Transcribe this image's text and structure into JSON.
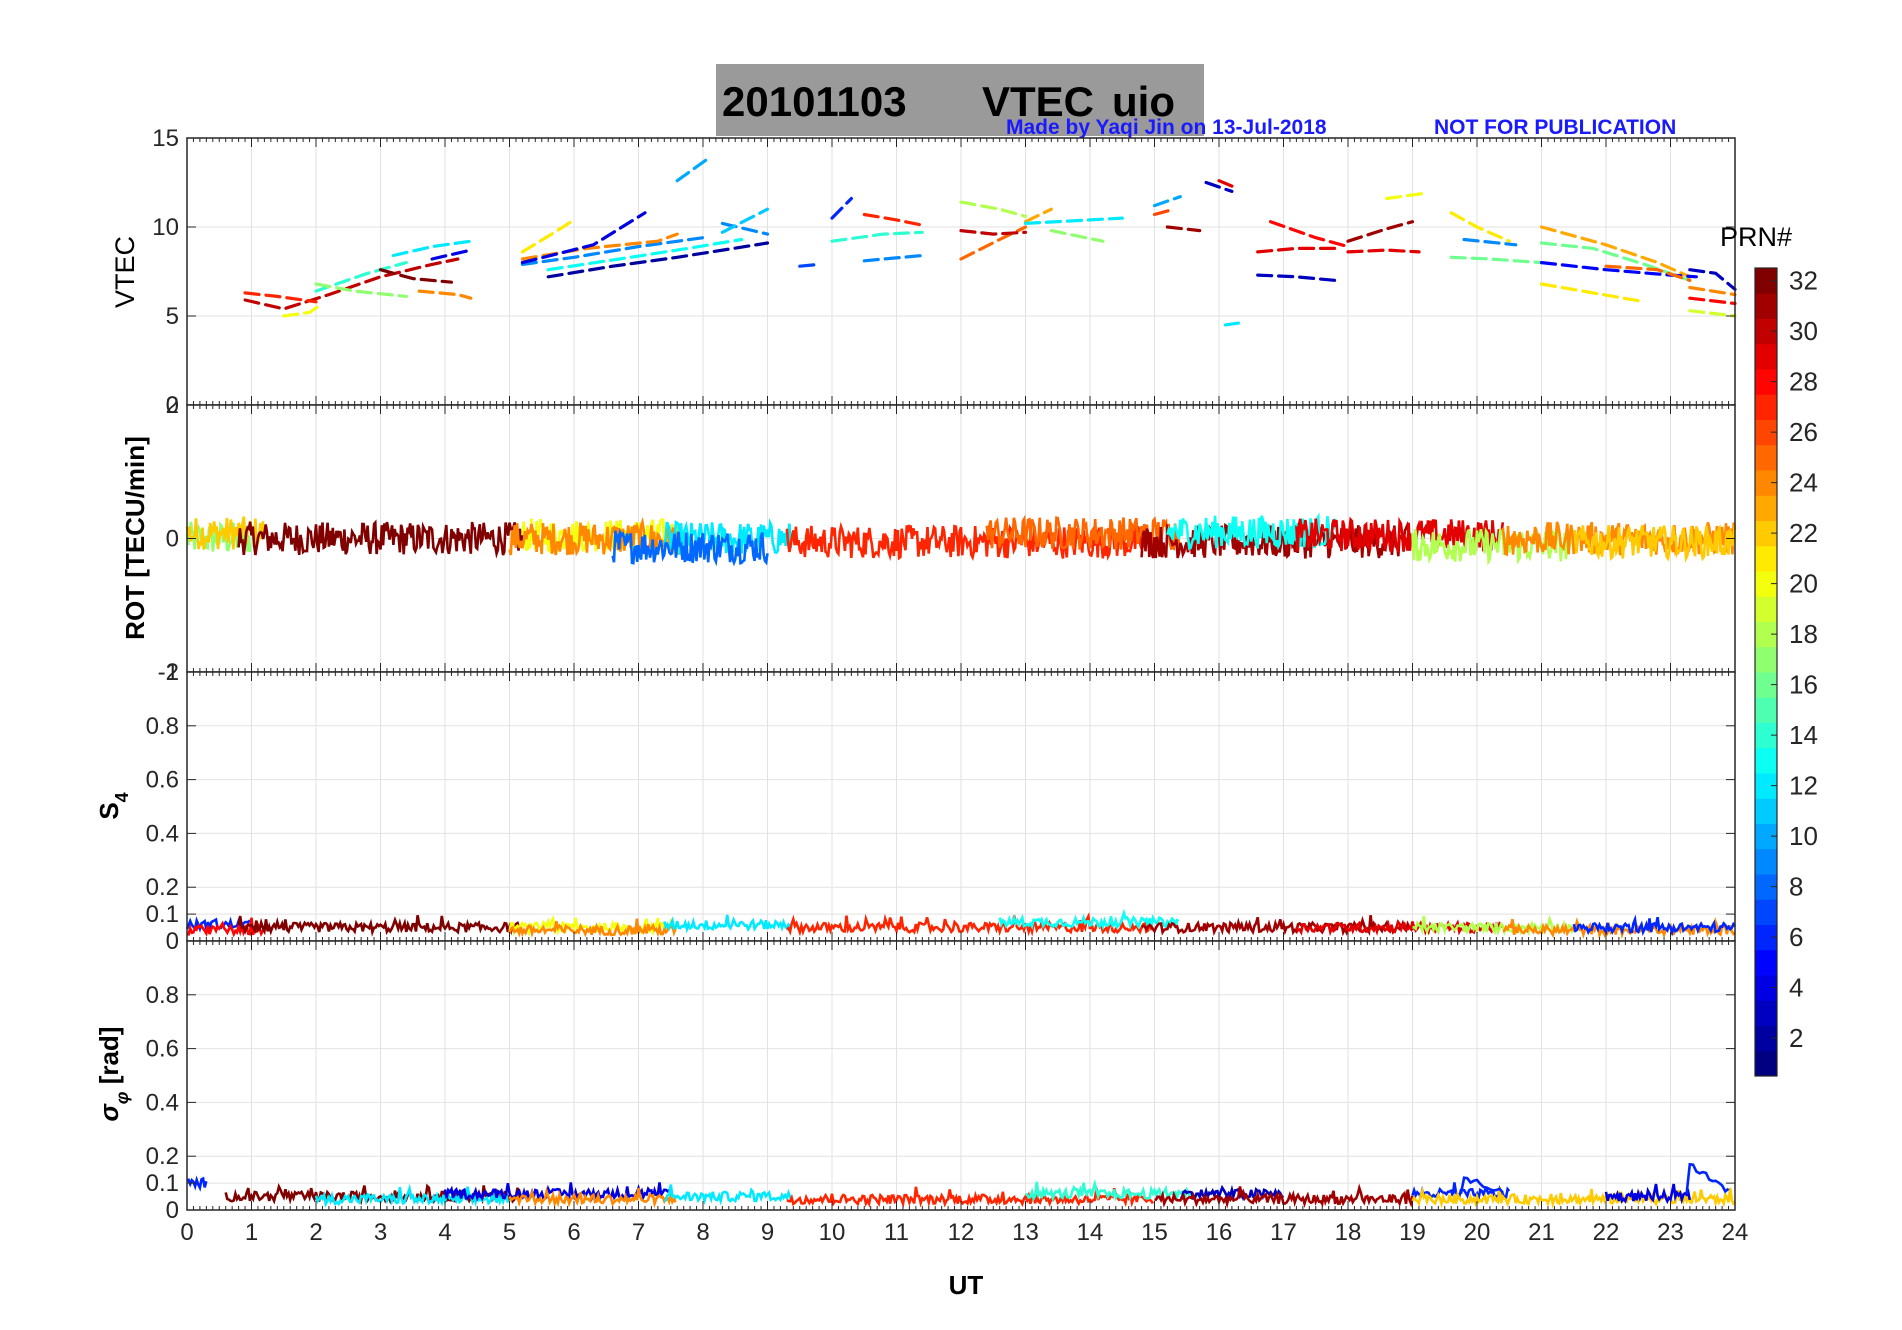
{
  "title": {
    "date": "20101103",
    "label": "VTEC",
    "station": "uio"
  },
  "credit": {
    "made_by": "Made by Yaqi Jin on 13-Jul-2018",
    "notice": "NOT FOR PUBLICATION"
  },
  "colorbar": {
    "label": "PRN#",
    "min": 1,
    "max": 32,
    "ticks": [
      2,
      4,
      6,
      8,
      10,
      12,
      14,
      16,
      18,
      20,
      22,
      24,
      26,
      28,
      30,
      32
    ],
    "colormap": "jet"
  },
  "chart_data": [
    {
      "type": "scatter",
      "panel": "vtec",
      "ylabel": "VTEC",
      "ylim": [
        0,
        15
      ],
      "yticks": [
        0,
        5,
        10,
        15
      ],
      "xlim": [
        0,
        24
      ],
      "grid": true,
      "series_note": "one colored trace per satellite PRN",
      "tracks": [
        {
          "prn": 30,
          "x": [
            0.9,
            1.5,
            2.2,
            3.0,
            3.8,
            4.2
          ],
          "y": [
            5.9,
            5.4,
            6.2,
            7.2,
            7.9,
            8.2
          ]
        },
        {
          "prn": 27,
          "x": [
            0.9,
            1.4,
            2.0
          ],
          "y": [
            6.3,
            6.1,
            5.8
          ]
        },
        {
          "prn": 20,
          "x": [
            1.5,
            1.9,
            2.1
          ],
          "y": [
            5.0,
            5.2,
            5.7
          ]
        },
        {
          "prn": 14,
          "x": [
            2.0,
            2.8,
            3.4
          ],
          "y": [
            6.4,
            7.4,
            8.0
          ]
        },
        {
          "prn": 17,
          "x": [
            2.0,
            2.6,
            3.4
          ],
          "y": [
            6.8,
            6.4,
            6.1
          ]
        },
        {
          "prn": 12,
          "x": [
            3.2,
            3.8,
            4.4
          ],
          "y": [
            8.4,
            8.9,
            9.2
          ]
        },
        {
          "prn": 32,
          "x": [
            3.0,
            3.5,
            4.1
          ],
          "y": [
            7.6,
            7.1,
            6.9
          ]
        },
        {
          "prn": 24,
          "x": [
            3.6,
            4.2,
            4.4
          ],
          "y": [
            6.4,
            6.2,
            6.0
          ]
        },
        {
          "prn": 4,
          "x": [
            3.8,
            4.4
          ],
          "y": [
            8.2,
            8.7
          ]
        },
        {
          "prn": 21,
          "x": [
            5.2,
            5.7,
            6.0
          ],
          "y": [
            8.6,
            9.7,
            10.4
          ]
        },
        {
          "prn": 9,
          "x": [
            5.2,
            6.0,
            7.0,
            8.0
          ],
          "y": [
            7.9,
            8.3,
            8.9,
            9.4
          ]
        },
        {
          "prn": 24,
          "x": [
            5.2,
            6.2,
            7.3,
            7.6
          ],
          "y": [
            8.2,
            8.8,
            9.2,
            9.6
          ]
        },
        {
          "prn": 4,
          "x": [
            5.2,
            6.3,
            7.1
          ],
          "y": [
            8.0,
            9.0,
            10.8
          ]
        },
        {
          "prn": 13,
          "x": [
            5.6,
            6.7,
            7.6,
            8.6
          ],
          "y": [
            7.6,
            8.2,
            8.7,
            9.3
          ]
        },
        {
          "prn": 2,
          "x": [
            5.6,
            6.6,
            7.6,
            9.0
          ],
          "y": [
            7.2,
            7.8,
            8.3,
            9.1
          ]
        },
        {
          "prn": 10,
          "x": [
            7.6,
            8.1
          ],
          "y": [
            12.6,
            13.9
          ]
        },
        {
          "prn": 9,
          "x": [
            8.3,
            9.0
          ],
          "y": [
            10.2,
            9.6
          ]
        },
        {
          "prn": 11,
          "x": [
            8.3,
            9.0
          ],
          "y": [
            9.7,
            11.0
          ]
        },
        {
          "prn": 7,
          "x": [
            9.5,
            9.8
          ],
          "y": [
            7.8,
            7.9
          ]
        },
        {
          "prn": 6,
          "x": [
            10.0,
            10.3
          ],
          "y": [
            10.5,
            11.6
          ]
        },
        {
          "prn": 27,
          "x": [
            10.5,
            11.0,
            11.4
          ],
          "y": [
            10.7,
            10.4,
            10.1
          ]
        },
        {
          "prn": 14,
          "x": [
            10.0,
            10.8,
            11.4
          ],
          "y": [
            9.2,
            9.6,
            9.7
          ]
        },
        {
          "prn": 9,
          "x": [
            10.5,
            11.4
          ],
          "y": [
            8.1,
            8.4
          ]
        },
        {
          "prn": 18,
          "x": [
            12.0,
            12.6,
            13.0
          ],
          "y": [
            11.4,
            11.0,
            10.6
          ]
        },
        {
          "prn": 25,
          "x": [
            12.0,
            12.6,
            13.0
          ],
          "y": [
            8.2,
            9.3,
            10.0
          ]
        },
        {
          "prn": 30,
          "x": [
            12.0,
            12.5,
            13.0
          ],
          "y": [
            9.8,
            9.6,
            9.7
          ]
        },
        {
          "prn": 23,
          "x": [
            13.0,
            13.4
          ],
          "y": [
            10.3,
            11.0
          ]
        },
        {
          "prn": 12,
          "x": [
            13.0,
            14.0,
            14.5
          ],
          "y": [
            10.2,
            10.4,
            10.5
          ]
        },
        {
          "prn": 17,
          "x": [
            13.4,
            14.2
          ],
          "y": [
            9.8,
            9.2
          ]
        },
        {
          "prn": 10,
          "x": [
            15.0,
            15.4
          ],
          "y": [
            11.2,
            11.7
          ]
        },
        {
          "prn": 26,
          "x": [
            15.0,
            15.3
          ],
          "y": [
            10.7,
            11.0
          ]
        },
        {
          "prn": 3,
          "x": [
            15.8,
            16.2
          ],
          "y": [
            12.5,
            12.0
          ]
        },
        {
          "prn": 29,
          "x": [
            16.0,
            16.2
          ],
          "y": [
            12.6,
            12.3
          ]
        },
        {
          "prn": 31,
          "x": [
            15.2,
            15.7
          ],
          "y": [
            10.0,
            9.8
          ]
        },
        {
          "prn": 12,
          "x": [
            16.1,
            16.3
          ],
          "y": [
            4.5,
            4.6
          ]
        },
        {
          "prn": 29,
          "x": [
            16.6,
            17.2,
            17.8
          ],
          "y": [
            8.6,
            8.8,
            8.8
          ]
        },
        {
          "prn": 3,
          "x": [
            16.6,
            17.2,
            17.8
          ],
          "y": [
            7.3,
            7.2,
            7.0
          ]
        },
        {
          "prn": 28,
          "x": [
            16.8,
            17.5,
            18.0
          ],
          "y": [
            10.3,
            9.4,
            8.9
          ]
        },
        {
          "prn": 31,
          "x": [
            18.0,
            18.6,
            19.0
          ],
          "y": [
            9.2,
            9.9,
            10.3
          ]
        },
        {
          "prn": 20,
          "x": [
            18.6,
            19.2
          ],
          "y": [
            11.6,
            11.9
          ]
        },
        {
          "prn": 29,
          "x": [
            18.0,
            18.6,
            19.1
          ],
          "y": [
            8.6,
            8.7,
            8.6
          ]
        },
        {
          "prn": 21,
          "x": [
            19.6,
            20.0,
            20.5
          ],
          "y": [
            10.8,
            10.0,
            9.2
          ]
        },
        {
          "prn": 16,
          "x": [
            19.6,
            20.2,
            21.0
          ],
          "y": [
            8.3,
            8.2,
            8.0
          ]
        },
        {
          "prn": 9,
          "x": [
            19.8,
            20.6
          ],
          "y": [
            9.3,
            9.0
          ]
        },
        {
          "prn": 23,
          "x": [
            21.0,
            22.0,
            22.8,
            23.3
          ],
          "y": [
            10.0,
            9.0,
            8.0,
            7.2
          ]
        },
        {
          "prn": 16,
          "x": [
            21.0,
            21.8,
            22.6,
            23.3
          ],
          "y": [
            9.1,
            8.8,
            7.9,
            7.0
          ]
        },
        {
          "prn": 21,
          "x": [
            21.0,
            21.8,
            22.6
          ],
          "y": [
            6.8,
            6.3,
            5.8
          ]
        },
        {
          "prn": 5,
          "x": [
            21.0,
            22.0,
            23.0,
            23.4
          ],
          "y": [
            8.0,
            7.6,
            7.3,
            7.2
          ]
        },
        {
          "prn": 25,
          "x": [
            22.0,
            22.8,
            23.3
          ],
          "y": [
            7.8,
            7.6,
            7.0
          ]
        },
        {
          "prn": 3,
          "x": [
            23.3,
            23.7,
            24.0
          ],
          "y": [
            7.6,
            7.4,
            6.5
          ]
        },
        {
          "prn": 24,
          "x": [
            23.3,
            24.0
          ],
          "y": [
            6.6,
            6.2
          ]
        },
        {
          "prn": 19,
          "x": [
            23.3,
            24.0
          ],
          "y": [
            5.3,
            5.0
          ]
        },
        {
          "prn": 28,
          "x": [
            23.3,
            24.0
          ],
          "y": [
            6.0,
            5.7
          ]
        }
      ]
    },
    {
      "type": "scatter",
      "panel": "rot",
      "ylabel": "ROT [TECU/min]",
      "ylim": [
        -2,
        2
      ],
      "yticks": [
        -2,
        0,
        2
      ],
      "xlim": [
        0,
        24
      ],
      "grid": true,
      "baseline": 0,
      "typical_amplitude": 0.25,
      "segments": [
        {
          "prn": 17,
          "x0": 0.0,
          "x1": 1.0,
          "offset": 0.0
        },
        {
          "prn": 22,
          "x0": 0.0,
          "x1": 1.2,
          "offset": 0.08
        },
        {
          "prn": 32,
          "x0": 0.8,
          "x1": 5.2,
          "offset": 0.0
        },
        {
          "prn": 20,
          "x0": 5.2,
          "x1": 7.6,
          "offset": 0.05
        },
        {
          "prn": 24,
          "x0": 5.0,
          "x1": 7.6,
          "offset": 0.0
        },
        {
          "prn": 12,
          "x0": 7.4,
          "x1": 9.4,
          "offset": 0.0
        },
        {
          "prn": 8,
          "x0": 6.6,
          "x1": 9.0,
          "offset": -0.12
        },
        {
          "prn": 27,
          "x0": 9.3,
          "x1": 15.0,
          "offset": -0.05
        },
        {
          "prn": 25,
          "x0": 12.4,
          "x1": 15.4,
          "offset": 0.08
        },
        {
          "prn": 31,
          "x0": 14.8,
          "x1": 19.0,
          "offset": -0.05
        },
        {
          "prn": 13,
          "x0": 15.2,
          "x1": 17.8,
          "offset": 0.1
        },
        {
          "prn": 29,
          "x0": 17.2,
          "x1": 20.4,
          "offset": 0.05
        },
        {
          "prn": 18,
          "x0": 19.0,
          "x1": 21.5,
          "offset": -0.1
        },
        {
          "prn": 24,
          "x0": 20.4,
          "x1": 24.0,
          "offset": 0.0
        },
        {
          "prn": 22,
          "x0": 21.5,
          "x1": 24.0,
          "offset": -0.05
        }
      ]
    },
    {
      "type": "scatter",
      "panel": "s4",
      "ylabel": "S4",
      "ylim": [
        0,
        1
      ],
      "yticks": [
        0,
        0.1,
        0.2,
        0.4,
        0.6,
        0.8,
        1
      ],
      "ytick_labels": [
        "0",
        "0.1",
        "0.2",
        "0.4",
        "0.6",
        "0.8",
        "1"
      ],
      "xlim": [
        0,
        24
      ],
      "grid": true,
      "typical_value": 0.05,
      "segments": [
        {
          "prn": 6,
          "x0": 0.0,
          "x1": 1.0,
          "level": 0.06
        },
        {
          "prn": 28,
          "x0": 0.0,
          "x1": 1.2,
          "level": 0.04
        },
        {
          "prn": 32,
          "x0": 0.8,
          "x1": 5.2,
          "level": 0.05
        },
        {
          "prn": 20,
          "x0": 5.0,
          "x1": 7.6,
          "level": 0.05
        },
        {
          "prn": 24,
          "x0": 5.0,
          "x1": 7.6,
          "level": 0.04
        },
        {
          "prn": 12,
          "x0": 7.4,
          "x1": 9.4,
          "level": 0.06
        },
        {
          "prn": 27,
          "x0": 9.3,
          "x1": 15.0,
          "level": 0.05
        },
        {
          "prn": 13,
          "x0": 12.6,
          "x1": 15.4,
          "level": 0.07
        },
        {
          "prn": 31,
          "x0": 14.8,
          "x1": 19.0,
          "level": 0.05
        },
        {
          "prn": 29,
          "x0": 17.2,
          "x1": 20.4,
          "level": 0.05
        },
        {
          "prn": 18,
          "x0": 19.0,
          "x1": 21.5,
          "level": 0.05
        },
        {
          "prn": 24,
          "x0": 20.4,
          "x1": 24.0,
          "level": 0.04
        },
        {
          "prn": 6,
          "x0": 21.5,
          "x1": 24.0,
          "level": 0.05
        }
      ]
    },
    {
      "type": "scatter",
      "panel": "sigma_phi",
      "ylabel": "σφ [rad]",
      "ylim": [
        0,
        1
      ],
      "yticks": [
        0,
        0.1,
        0.2,
        0.4,
        0.6,
        0.8
      ],
      "ytick_labels": [
        "0",
        "0.1",
        "0.2",
        "0.4",
        "0.6",
        "0.8"
      ],
      "xlim": [
        0,
        24
      ],
      "xlabel": "UT",
      "xticks": [
        0,
        1,
        2,
        3,
        4,
        5,
        6,
        7,
        8,
        9,
        10,
        11,
        12,
        13,
        14,
        15,
        16,
        17,
        18,
        19,
        20,
        21,
        22,
        23,
        24
      ],
      "grid": true,
      "typical_value": 0.05,
      "segments": [
        {
          "prn": 6,
          "x0": 0.0,
          "x1": 0.3,
          "level": 0.1
        },
        {
          "prn": 32,
          "x0": 0.6,
          "x1": 5.2,
          "level": 0.05
        },
        {
          "prn": 12,
          "x0": 2.0,
          "x1": 5.0,
          "level": 0.04
        },
        {
          "prn": 4,
          "x0": 4.0,
          "x1": 7.5,
          "level": 0.06
        },
        {
          "prn": 24,
          "x0": 5.0,
          "x1": 7.6,
          "level": 0.04
        },
        {
          "prn": 12,
          "x0": 7.4,
          "x1": 9.4,
          "level": 0.05
        },
        {
          "prn": 27,
          "x0": 9.3,
          "x1": 15.0,
          "level": 0.04
        },
        {
          "prn": 14,
          "x0": 13.0,
          "x1": 15.6,
          "level": 0.06
        },
        {
          "prn": 3,
          "x0": 15.4,
          "x1": 17.0,
          "level": 0.06
        },
        {
          "prn": 31,
          "x0": 15.0,
          "x1": 19.0,
          "level": 0.04
        },
        {
          "prn": 6,
          "x0": 19.0,
          "x1": 20.5,
          "level": 0.06
        },
        {
          "prn": 22,
          "x0": 19.0,
          "x1": 24.0,
          "level": 0.04
        },
        {
          "prn": 4,
          "x0": 22.0,
          "x1": 23.3,
          "level": 0.05
        }
      ],
      "spikes": [
        {
          "prn": 6,
          "x": 19.8,
          "peak": 0.12
        },
        {
          "prn": 6,
          "x": 23.3,
          "peak": 0.17
        }
      ]
    }
  ]
}
